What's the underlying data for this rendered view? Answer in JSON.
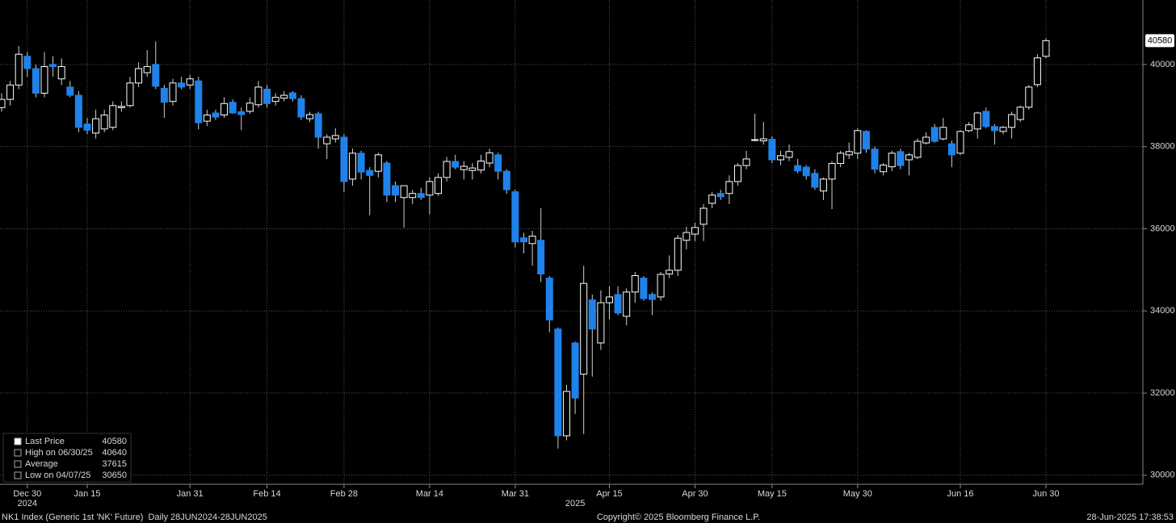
{
  "chart_data": {
    "type": "candlestick",
    "categories": [
      null,
      null,
      null,
      "Dec 30",
      null,
      null,
      null,
      null,
      null,
      null,
      "Jan 15",
      null,
      null,
      null,
      null,
      null,
      null,
      null,
      null,
      null,
      null,
      null,
      "Jan 31",
      null,
      null,
      null,
      null,
      null,
      null,
      null,
      null,
      "Feb 14",
      null,
      null,
      null,
      null,
      null,
      null,
      null,
      null,
      "Feb 28",
      null,
      null,
      null,
      null,
      null,
      null,
      null,
      null,
      null,
      "Mar 14",
      null,
      null,
      null,
      null,
      null,
      null,
      null,
      null,
      null,
      "Mar 31",
      null,
      null,
      null,
      null,
      null,
      null,
      null,
      null,
      null,
      null,
      "Apr 15",
      null,
      null,
      null,
      null,
      null,
      null,
      null,
      null,
      null,
      "Apr 30",
      null,
      null,
      null,
      null,
      null,
      null,
      null,
      null,
      "May 15",
      null,
      null,
      null,
      null,
      null,
      null,
      null,
      null,
      null,
      "May 30",
      null,
      null,
      null,
      null,
      null,
      null,
      null,
      null,
      null,
      null,
      null,
      "Jun 16",
      null,
      null,
      null,
      null,
      null,
      null,
      null,
      null,
      null,
      "Jun 30"
    ],
    "year_categories": [
      null,
      null,
      null,
      "2024",
      null,
      null,
      null,
      null,
      null,
      null,
      null,
      null,
      null,
      null,
      null,
      null,
      null,
      null,
      null,
      null,
      null,
      null,
      null,
      null,
      null,
      null,
      null,
      null,
      null,
      null,
      null,
      null,
      null,
      null,
      null,
      null,
      null,
      null,
      null,
      null,
      null,
      null,
      null,
      null,
      null,
      null,
      null,
      null,
      null,
      null,
      null,
      null,
      null,
      null,
      null,
      null,
      null,
      null,
      null,
      null,
      null,
      null,
      null,
      null,
      null,
      null,
      null,
      "2025",
      null,
      null,
      null,
      null,
      null,
      null,
      null,
      null,
      null,
      null,
      null,
      null,
      null,
      null,
      null,
      null,
      null,
      null,
      null,
      null,
      null,
      null,
      null,
      null,
      null,
      null,
      null,
      null,
      null,
      null,
      null,
      null,
      null,
      null,
      null,
      null,
      null,
      null,
      null,
      null,
      null,
      null,
      null,
      null,
      null,
      null,
      null,
      null,
      null,
      null,
      null,
      null,
      null,
      null,
      null
    ],
    "open": [
      38950,
      39150,
      39500,
      40200,
      39900,
      39300,
      40000,
      39650,
      39450,
      39250,
      38550,
      38330,
      38430,
      38470,
      38950,
      39000,
      39550,
      39800,
      40000,
      39420,
      39100,
      39550,
      39500,
      39600,
      38620,
      38820,
      38770,
      39080,
      38850,
      38860,
      39020,
      39400,
      39100,
      39180,
      39310,
      39170,
      38680,
      38800,
      38070,
      38190,
      38230,
      37210,
      37840,
      37420,
      37400,
      37600,
      37050,
      36760,
      36760,
      36860,
      36820,
      36860,
      37250,
      37640,
      37440,
      37420,
      37430,
      37600,
      37800,
      37400,
      36900,
      35780,
      35640,
      35720,
      34800,
      33560,
      30960,
      33220,
      32460,
      34270,
      33220,
      34200,
      34400,
      33870,
      34460,
      34800,
      34400,
      34340,
      34900,
      34990,
      35720,
      35870,
      36110,
      36620,
      36860,
      36860,
      37150,
      37540,
      38150,
      38140,
      38180,
      37680,
      37740,
      37540,
      37500,
      37350,
      36920,
      37210,
      37590,
      37800,
      37840,
      38370,
      37940,
      37390,
      37510,
      37880,
      37680,
      37740,
      38090,
      38470,
      38190,
      38070,
      37840,
      38390,
      38430,
      38860,
      38490,
      38370,
      38470,
      38660,
      38960,
      39510,
      40200
    ],
    "high": [
      39300,
      39600,
      40450,
      40300,
      40000,
      40300,
      40200,
      40150,
      39600,
      39350,
      38700,
      38900,
      38900,
      39100,
      39100,
      39700,
      40050,
      40350,
      40560,
      39500,
      39650,
      39700,
      39750,
      39700,
      38900,
      38900,
      39200,
      39150,
      38950,
      39200,
      39600,
      39500,
      39300,
      39350,
      39350,
      39250,
      38850,
      38850,
      38300,
      38450,
      38300,
      37950,
      37900,
      37500,
      37850,
      37650,
      37150,
      37050,
      36950,
      37000,
      37250,
      37350,
      37750,
      37800,
      37650,
      37600,
      37800,
      37950,
      37850,
      37450,
      36950,
      35900,
      35950,
      36500,
      34850,
      33600,
      32200,
      33250,
      35100,
      34400,
      34500,
      34600,
      34600,
      34550,
      34950,
      34850,
      34450,
      34950,
      35350,
      35850,
      36050,
      36150,
      36600,
      36900,
      36950,
      37300,
      37600,
      37900,
      38800,
      38600,
      38250,
      37900,
      38050,
      37700,
      37550,
      37450,
      37250,
      37650,
      37900,
      38100,
      38450,
      38400,
      38000,
      37600,
      37900,
      37950,
      37850,
      38200,
      38350,
      38550,
      38700,
      38150,
      38400,
      38600,
      38850,
      38950,
      38550,
      38500,
      38850,
      39000,
      39500,
      40250,
      40640
    ],
    "low": [
      38850,
      39000,
      39400,
      39700,
      39200,
      39200,
      39700,
      39500,
      39200,
      38350,
      38300,
      38200,
      38350,
      38400,
      38850,
      38950,
      39450,
      39700,
      39400,
      38700,
      39000,
      39400,
      39400,
      38420,
      38500,
      38650,
      38700,
      38800,
      38400,
      38800,
      38950,
      38950,
      39000,
      39100,
      39100,
      38650,
      38600,
      37950,
      37700,
      38100,
      36900,
      37050,
      37200,
      36330,
      37250,
      36650,
      36650,
      36030,
      36600,
      36700,
      36350,
      36800,
      37150,
      37450,
      37200,
      37200,
      37350,
      37500,
      37200,
      36850,
      35550,
      35400,
      35100,
      34700,
      33480,
      30650,
      30850,
      31490,
      31000,
      32400,
      33050,
      33800,
      33900,
      33650,
      34200,
      34250,
      33900,
      34250,
      34800,
      34850,
      35500,
      35700,
      35700,
      36500,
      36700,
      36600,
      37050,
      37450,
      38130,
      38050,
      37600,
      37550,
      37650,
      37350,
      37200,
      36950,
      36700,
      36480,
      37500,
      37700,
      37700,
      37850,
      37350,
      37300,
      37400,
      37450,
      37300,
      37700,
      38050,
      38100,
      38150,
      37500,
      37800,
      38350,
      38200,
      38450,
      38050,
      38300,
      38200,
      38600,
      38900,
      39450,
      40150
    ],
    "close": [
      39150,
      39500,
      40250,
      39900,
      39300,
      39950,
      39950,
      39950,
      39250,
      38470,
      38400,
      38680,
      38770,
      39000,
      38980,
      39550,
      39900,
      39950,
      39470,
      39080,
      39550,
      39450,
      39650,
      38580,
      38770,
      38720,
      39050,
      38820,
      38780,
      39060,
      39450,
      39050,
      39200,
      39250,
      39170,
      38720,
      38780,
      38230,
      38230,
      38270,
      37150,
      37840,
      37380,
      37300,
      37800,
      36820,
      36820,
      37050,
      36860,
      36760,
      37150,
      37250,
      37640,
      37500,
      37520,
      37480,
      37650,
      37850,
      37400,
      36950,
      35680,
      35680,
      35820,
      34900,
      33780,
      30960,
      32040,
      31880,
      34670,
      33560,
      34200,
      34340,
      33950,
      34460,
      34860,
      34300,
      34280,
      34890,
      34990,
      35770,
      35910,
      36030,
      36500,
      36820,
      36780,
      37150,
      37540,
      37700,
      38170,
      38190,
      37680,
      37780,
      37880,
      37410,
      37290,
      37010,
      37210,
      37590,
      37840,
      37880,
      38390,
      37940,
      37450,
      37550,
      37840,
      37540,
      37800,
      38130,
      38230,
      38130,
      38470,
      37800,
      38370,
      38530,
      38820,
      38490,
      38390,
      38470,
      38780,
      38960,
      39450,
      40160,
      40580
    ],
    "up_color": "#ffffff",
    "down_color": "#1f82ea",
    "ylim": [
      29780,
      41570
    ],
    "yticks": [
      30000,
      32000,
      34000,
      36000,
      38000,
      40000
    ],
    "grid": true,
    "legend": {
      "items": [
        {
          "label": "Last Price",
          "value": 40580
        },
        {
          "label": "High on 06/30/25",
          "value": 40640
        },
        {
          "label": "Average",
          "value": 37615
        },
        {
          "label": "Low on 04/07/25",
          "value": 30650
        }
      ]
    },
    "footer": {
      "left": "NK1 Index (Generic 1st 'NK' Future)  Daily 28JUN2024-28JUN2025",
      "center": "Copyright© 2025 Bloomberg Finance L.P.",
      "right": "28-Jun-2025 17:38:53"
    }
  }
}
